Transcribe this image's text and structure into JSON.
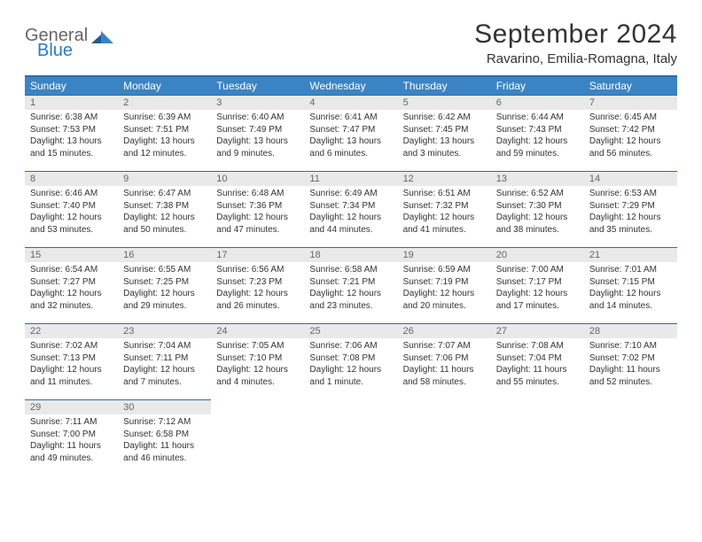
{
  "logo": {
    "word1": "General",
    "word2": "Blue",
    "accent_color": "#2b7bbf",
    "muted_color": "#666666"
  },
  "title": "September 2024",
  "location": "Ravarino, Emilia-Romagna, Italy",
  "colors": {
    "header_bg": "#3b84c4",
    "header_border": "#2b6da8",
    "daynum_bg": "#e9e9e9",
    "text": "#333333"
  },
  "day_labels": [
    "Sunday",
    "Monday",
    "Tuesday",
    "Wednesday",
    "Thursday",
    "Friday",
    "Saturday"
  ],
  "weeks": [
    [
      {
        "n": "1",
        "sr": "Sunrise: 6:38 AM",
        "ss": "Sunset: 7:53 PM",
        "dl": "Daylight: 13 hours and 15 minutes."
      },
      {
        "n": "2",
        "sr": "Sunrise: 6:39 AM",
        "ss": "Sunset: 7:51 PM",
        "dl": "Daylight: 13 hours and 12 minutes."
      },
      {
        "n": "3",
        "sr": "Sunrise: 6:40 AM",
        "ss": "Sunset: 7:49 PM",
        "dl": "Daylight: 13 hours and 9 minutes."
      },
      {
        "n": "4",
        "sr": "Sunrise: 6:41 AM",
        "ss": "Sunset: 7:47 PM",
        "dl": "Daylight: 13 hours and 6 minutes."
      },
      {
        "n": "5",
        "sr": "Sunrise: 6:42 AM",
        "ss": "Sunset: 7:45 PM",
        "dl": "Daylight: 13 hours and 3 minutes."
      },
      {
        "n": "6",
        "sr": "Sunrise: 6:44 AM",
        "ss": "Sunset: 7:43 PM",
        "dl": "Daylight: 12 hours and 59 minutes."
      },
      {
        "n": "7",
        "sr": "Sunrise: 6:45 AM",
        "ss": "Sunset: 7:42 PM",
        "dl": "Daylight: 12 hours and 56 minutes."
      }
    ],
    [
      {
        "n": "8",
        "sr": "Sunrise: 6:46 AM",
        "ss": "Sunset: 7:40 PM",
        "dl": "Daylight: 12 hours and 53 minutes."
      },
      {
        "n": "9",
        "sr": "Sunrise: 6:47 AM",
        "ss": "Sunset: 7:38 PM",
        "dl": "Daylight: 12 hours and 50 minutes."
      },
      {
        "n": "10",
        "sr": "Sunrise: 6:48 AM",
        "ss": "Sunset: 7:36 PM",
        "dl": "Daylight: 12 hours and 47 minutes."
      },
      {
        "n": "11",
        "sr": "Sunrise: 6:49 AM",
        "ss": "Sunset: 7:34 PM",
        "dl": "Daylight: 12 hours and 44 minutes."
      },
      {
        "n": "12",
        "sr": "Sunrise: 6:51 AM",
        "ss": "Sunset: 7:32 PM",
        "dl": "Daylight: 12 hours and 41 minutes."
      },
      {
        "n": "13",
        "sr": "Sunrise: 6:52 AM",
        "ss": "Sunset: 7:30 PM",
        "dl": "Daylight: 12 hours and 38 minutes."
      },
      {
        "n": "14",
        "sr": "Sunrise: 6:53 AM",
        "ss": "Sunset: 7:29 PM",
        "dl": "Daylight: 12 hours and 35 minutes."
      }
    ],
    [
      {
        "n": "15",
        "sr": "Sunrise: 6:54 AM",
        "ss": "Sunset: 7:27 PM",
        "dl": "Daylight: 12 hours and 32 minutes."
      },
      {
        "n": "16",
        "sr": "Sunrise: 6:55 AM",
        "ss": "Sunset: 7:25 PM",
        "dl": "Daylight: 12 hours and 29 minutes."
      },
      {
        "n": "17",
        "sr": "Sunrise: 6:56 AM",
        "ss": "Sunset: 7:23 PM",
        "dl": "Daylight: 12 hours and 26 minutes."
      },
      {
        "n": "18",
        "sr": "Sunrise: 6:58 AM",
        "ss": "Sunset: 7:21 PM",
        "dl": "Daylight: 12 hours and 23 minutes."
      },
      {
        "n": "19",
        "sr": "Sunrise: 6:59 AM",
        "ss": "Sunset: 7:19 PM",
        "dl": "Daylight: 12 hours and 20 minutes."
      },
      {
        "n": "20",
        "sr": "Sunrise: 7:00 AM",
        "ss": "Sunset: 7:17 PM",
        "dl": "Daylight: 12 hours and 17 minutes."
      },
      {
        "n": "21",
        "sr": "Sunrise: 7:01 AM",
        "ss": "Sunset: 7:15 PM",
        "dl": "Daylight: 12 hours and 14 minutes."
      }
    ],
    [
      {
        "n": "22",
        "sr": "Sunrise: 7:02 AM",
        "ss": "Sunset: 7:13 PM",
        "dl": "Daylight: 12 hours and 11 minutes."
      },
      {
        "n": "23",
        "sr": "Sunrise: 7:04 AM",
        "ss": "Sunset: 7:11 PM",
        "dl": "Daylight: 12 hours and 7 minutes."
      },
      {
        "n": "24",
        "sr": "Sunrise: 7:05 AM",
        "ss": "Sunset: 7:10 PM",
        "dl": "Daylight: 12 hours and 4 minutes."
      },
      {
        "n": "25",
        "sr": "Sunrise: 7:06 AM",
        "ss": "Sunset: 7:08 PM",
        "dl": "Daylight: 12 hours and 1 minute."
      },
      {
        "n": "26",
        "sr": "Sunrise: 7:07 AM",
        "ss": "Sunset: 7:06 PM",
        "dl": "Daylight: 11 hours and 58 minutes."
      },
      {
        "n": "27",
        "sr": "Sunrise: 7:08 AM",
        "ss": "Sunset: 7:04 PM",
        "dl": "Daylight: 11 hours and 55 minutes."
      },
      {
        "n": "28",
        "sr": "Sunrise: 7:10 AM",
        "ss": "Sunset: 7:02 PM",
        "dl": "Daylight: 11 hours and 52 minutes."
      }
    ],
    [
      {
        "n": "29",
        "sr": "Sunrise: 7:11 AM",
        "ss": "Sunset: 7:00 PM",
        "dl": "Daylight: 11 hours and 49 minutes."
      },
      {
        "n": "30",
        "sr": "Sunrise: 7:12 AM",
        "ss": "Sunset: 6:58 PM",
        "dl": "Daylight: 11 hours and 46 minutes."
      },
      null,
      null,
      null,
      null,
      null
    ]
  ]
}
